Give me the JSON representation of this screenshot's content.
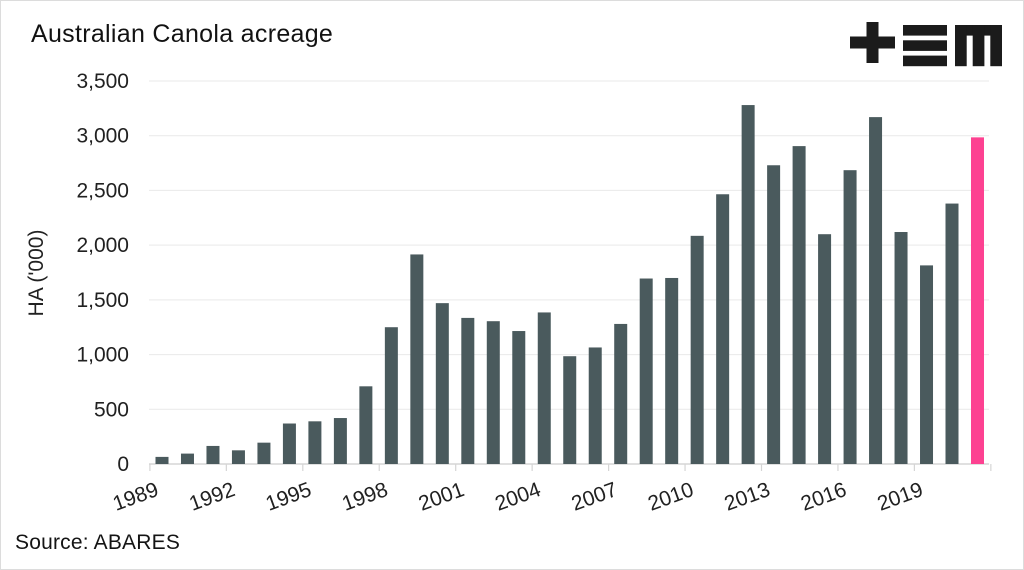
{
  "title": "Australian Canola acreage",
  "source": "Source: ABARES",
  "logo": {
    "name": "tem-monogram",
    "color": "#1b1b1b",
    "glyphs": [
      "plus",
      "triple-bar",
      "block-m"
    ]
  },
  "colors": {
    "bar": "#4a5a5d",
    "highlight": "#fd4191",
    "grid": "#e9e9e9",
    "axis": "#d5d5d5",
    "text": "#212121",
    "background": "#ffffff",
    "border": "#dcdcdc"
  },
  "chart_data": {
    "type": "bar",
    "title": "Australian Canola acreage",
    "xlabel": "",
    "ylabel": "HA ('000)",
    "ylim": [
      0,
      3500
    ],
    "ytick_step": 500,
    "ytick_labels": [
      "0",
      "500",
      "1,000",
      "1,500",
      "2,000",
      "2,500",
      "3,000",
      "3,500"
    ],
    "xtick_labels": [
      "1989",
      "1992",
      "1995",
      "1998",
      "2001",
      "2004",
      "2007",
      "2010",
      "2013",
      "2016",
      "2019"
    ],
    "grid": "horizontal-only",
    "legend": "none",
    "categories": [
      1989,
      1990,
      1991,
      1992,
      1993,
      1994,
      1995,
      1996,
      1997,
      1998,
      1999,
      2000,
      2001,
      2002,
      2003,
      2004,
      2005,
      2006,
      2007,
      2008,
      2009,
      2010,
      2011,
      2012,
      2013,
      2014,
      2015,
      2016,
      2017,
      2018,
      2019,
      2020,
      2021
    ],
    "values": [
      65,
      95,
      165,
      125,
      195,
      370,
      390,
      420,
      710,
      1250,
      1915,
      1470,
      1335,
      1305,
      1215,
      1385,
      985,
      1065,
      1280,
      1695,
      1700,
      2085,
      2465,
      3280,
      2730,
      2905,
      2100,
      2685,
      3170,
      2120,
      1815,
      2380,
      2985
    ],
    "highlight_last": true,
    "highlight_year": 2021
  }
}
